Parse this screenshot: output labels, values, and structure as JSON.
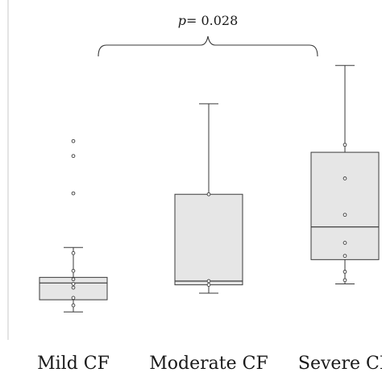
{
  "chart_data": {
    "type": "box",
    "title": "",
    "xlabel": "",
    "ylabel": "",
    "categories": [
      "Mild CF",
      "Moderate CF",
      "Severe CF"
    ],
    "boxes": [
      {
        "name": "Mild CF",
        "whisker_low": 1.0,
        "q1": 2.3,
        "median": 4.1,
        "q3": 4.7,
        "whisker_high": 7.9,
        "points": [
          1.7,
          2.5,
          3.6,
          4.0,
          4.5,
          5.4,
          7.3,
          13.7,
          17.7,
          19.3
        ]
      },
      {
        "name": "Moderate CF",
        "whisker_low": 3.0,
        "q1": 3.9,
        "median": 4.3,
        "q3": 13.6,
        "whisker_high": 23.3,
        "points": [
          3.9,
          4.3,
          13.6
        ]
      },
      {
        "name": "Severe CF",
        "whisker_low": 4.0,
        "q1": 6.6,
        "median": 10.1,
        "q3": 18.1,
        "whisker_high": 27.4,
        "points": [
          4.4,
          5.3,
          7.0,
          8.4,
          11.4,
          15.3,
          18.9
        ]
      }
    ],
    "annotation": {
      "label": "p = 0.028",
      "p_symbol": "p",
      "p_value": "= 0.028",
      "from": "Mild CF",
      "to": "Severe CF"
    },
    "ylim": [
      -2,
      32
    ],
    "grid": false,
    "legend": "none",
    "colors": {
      "box_fill": "#e6e6e6",
      "stroke": "#3a3a3a",
      "axis": "#c8c8c8"
    }
  }
}
